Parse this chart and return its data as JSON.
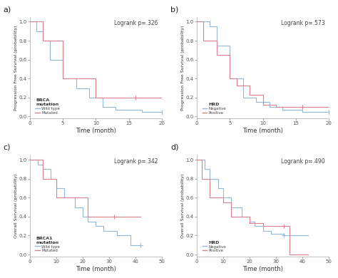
{
  "panels": [
    {
      "label": "a)",
      "logrank": "Logrank p=.326",
      "ylabel": "Progression Free Survival (probability)",
      "xlabel": "Time (month)",
      "xlim": [
        0,
        20
      ],
      "ylim": [
        -0.02,
        1.05
      ],
      "xticks": [
        0,
        5,
        10,
        15,
        20
      ],
      "yticks": [
        0.0,
        0.2,
        0.4,
        0.6,
        0.8,
        1.0
      ],
      "legend_title": "BRCA\nmutation",
      "legend_labels": [
        "Wild type",
        "Mutated"
      ],
      "line1_color": "#92b8d8",
      "line2_color": "#d98090",
      "line1_x": [
        0,
        1,
        2,
        3,
        5,
        7,
        9,
        11,
        13,
        17,
        20
      ],
      "line1_y": [
        1.0,
        0.9,
        0.8,
        0.6,
        0.4,
        0.3,
        0.2,
        0.1,
        0.07,
        0.05,
        0.05
      ],
      "line2_x": [
        0,
        2,
        5,
        6,
        10,
        16,
        20
      ],
      "line2_y": [
        1.0,
        0.8,
        0.4,
        0.4,
        0.2,
        0.2,
        0.2
      ],
      "censor1_x": [
        20
      ],
      "censor1_y": [
        0.05
      ],
      "censor2_x": [
        16
      ],
      "censor2_y": [
        0.2
      ],
      "censor2_arrow": true
    },
    {
      "label": "b)",
      "logrank": "Logrank p=.573",
      "ylabel": "Progression Free Survival (probability)",
      "xlabel": "Time (month)",
      "xlim": [
        0,
        20
      ],
      "ylim": [
        -0.02,
        1.05
      ],
      "xticks": [
        0,
        5,
        10,
        15,
        20
      ],
      "yticks": [
        0.0,
        0.2,
        0.4,
        0.6,
        0.8,
        1.0
      ],
      "legend_title": "HRD",
      "legend_labels": [
        "Negative",
        "Positive"
      ],
      "line1_color": "#92b8d8",
      "line2_color": "#d98090",
      "line1_x": [
        0,
        2,
        3,
        5,
        7,
        9,
        11,
        13,
        16,
        20
      ],
      "line1_y": [
        1.0,
        0.95,
        0.75,
        0.4,
        0.2,
        0.15,
        0.1,
        0.07,
        0.05,
        0.05
      ],
      "line2_x": [
        0,
        1,
        3,
        5,
        6,
        8,
        10,
        12,
        16,
        20
      ],
      "line2_y": [
        1.0,
        0.8,
        0.65,
        0.4,
        0.33,
        0.23,
        0.12,
        0.1,
        0.1,
        0.1
      ],
      "censor1_x": [
        20
      ],
      "censor1_y": [
        0.05
      ],
      "censor2_x": [
        16
      ],
      "censor2_y": [
        0.1
      ],
      "censor2_arrow": false
    },
    {
      "label": "c)",
      "logrank": "Logrank p=.342",
      "ylabel": "Overall Survival (probability)",
      "xlabel": "Time (month)",
      "xlim": [
        0,
        50
      ],
      "ylim": [
        -0.02,
        1.05
      ],
      "xticks": [
        0,
        10,
        20,
        30,
        40,
        50
      ],
      "yticks": [
        0.0,
        0.2,
        0.4,
        0.6,
        0.8,
        1.0
      ],
      "legend_title": "BRCA1\nmutation",
      "legend_labels": [
        "Wild type",
        "Mutated"
      ],
      "line1_color": "#92b8d8",
      "line2_color": "#d98090",
      "line1_x": [
        0,
        3,
        5,
        8,
        10,
        13,
        17,
        20,
        22,
        25,
        28,
        33,
        38,
        42
      ],
      "line1_y": [
        1.0,
        0.95,
        0.9,
        0.8,
        0.7,
        0.6,
        0.5,
        0.4,
        0.35,
        0.3,
        0.25,
        0.2,
        0.1,
        0.1
      ],
      "line2_x": [
        0,
        5,
        10,
        22,
        32,
        42
      ],
      "line2_y": [
        1.0,
        0.8,
        0.6,
        0.4,
        0.4,
        0.4
      ],
      "censor1_x": [
        42
      ],
      "censor1_y": [
        0.1
      ],
      "censor2_x": [
        32
      ],
      "censor2_y": [
        0.4
      ],
      "censor2_arrow": false
    },
    {
      "label": "d)",
      "logrank": "Logrank p=.490",
      "ylabel": "Overall Survival (probability)",
      "xlabel": "Time (month)",
      "xlim": [
        0,
        50
      ],
      "ylim": [
        -0.02,
        1.05
      ],
      "xticks": [
        0,
        10,
        20,
        30,
        40,
        50
      ],
      "yticks": [
        0.0,
        0.2,
        0.4,
        0.6,
        0.8,
        1.0
      ],
      "legend_title": "HRD",
      "legend_labels": [
        "Negative",
        "Positive"
      ],
      "line1_color": "#92b8d8",
      "line2_color": "#d98090",
      "line1_x": [
        0,
        3,
        5,
        8,
        10,
        13,
        17,
        20,
        22,
        25,
        28,
        33,
        35,
        42
      ],
      "line1_y": [
        1.0,
        0.9,
        0.8,
        0.7,
        0.6,
        0.5,
        0.4,
        0.35,
        0.3,
        0.25,
        0.22,
        0.2,
        0.2,
        0.2
      ],
      "line2_x": [
        0,
        2,
        5,
        10,
        13,
        20,
        25,
        33,
        35,
        42
      ],
      "line2_y": [
        1.0,
        0.8,
        0.6,
        0.55,
        0.4,
        0.33,
        0.3,
        0.3,
        0.0,
        0.0
      ],
      "censor1_x": [
        33
      ],
      "censor1_y": [
        0.2
      ],
      "censor2_x": [
        33
      ],
      "censor2_y": [
        0.3
      ],
      "censor2_arrow": false
    }
  ],
  "bg_color": "#ffffff",
  "panel_bg": "#ffffff"
}
